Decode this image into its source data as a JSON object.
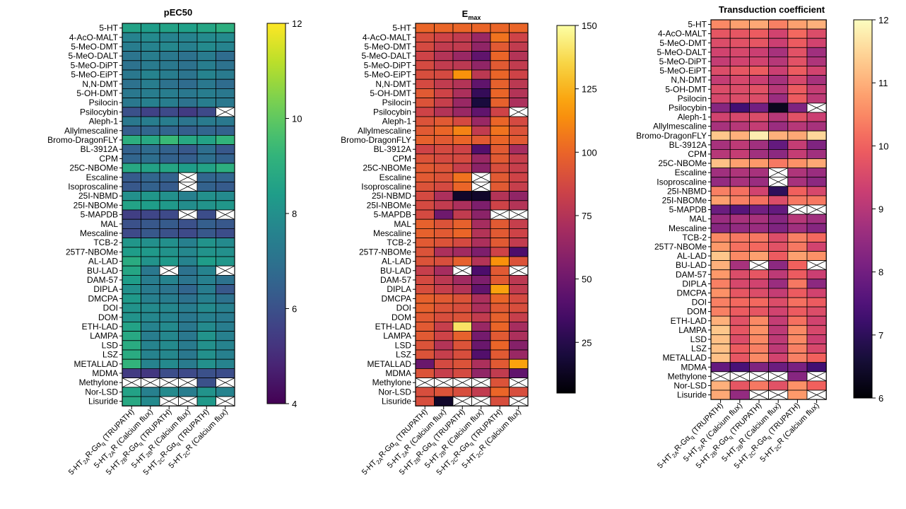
{
  "chart_data": [
    {
      "type": "heatmap",
      "title": "pEC50",
      "colormap": "viridis",
      "vmin": 4,
      "vmax": 12,
      "colorbar_ticks": [
        4,
        6,
        8,
        10,
        12
      ],
      "rows": [
        "5-HT",
        "4-AcO-MALT",
        "5-MeO-DMT",
        "5-MeO-DALT",
        "5-MeO-DiPT",
        "5-MeO-EiPT",
        "N,N-DMT",
        "5-OH-DMT",
        "Psilocin",
        "Psilocybin",
        "Aleph-1",
        "Allylmescaline",
        "Bromo-DragonFLY",
        "BL-3912A",
        "CPM",
        "25C-NBOMe",
        "Escaline",
        "Isoproscaline",
        "25I-NBMD",
        "25I-NBOMe",
        "5-MAPDB",
        "MAL",
        "Mescaline",
        "TCB-2",
        "25T7-NBOMe",
        "AL-LAD",
        "BU-LAD",
        "DAM-57",
        "DIPLA",
        "DMCPA",
        "DOI",
        "DOM",
        "ETH-LAD",
        "LAMPA",
        "LSD",
        "LSZ",
        "METALLAD",
        "MDMA",
        "Methylone",
        "Nor-LSD",
        "Lisuride"
      ],
      "columns": [
        {
          "pre": "5-HT",
          "sub": "2A",
          "post": "R-Gα",
          "sub2": "q",
          "post2": " (TRUPATH)"
        },
        {
          "pre": "5-HT",
          "sub": "2A",
          "post": "R (Calcium flux)",
          "sub2": "",
          "post2": ""
        },
        {
          "pre": "5-HT",
          "sub": "2B",
          "post": "R-Gα",
          "sub2": "q",
          "post2": " (TRUPATH)"
        },
        {
          "pre": "5-HT",
          "sub": "2B",
          "post": "R (Calcium flux)",
          "sub2": "",
          "post2": ""
        },
        {
          "pre": "5-HT",
          "sub": "2C",
          "post": "R-Gα",
          "sub2": "q",
          "post2": " (TRUPATH)"
        },
        {
          "pre": "5-HT",
          "sub": "2C",
          "post": "R (Calcium flux)",
          "sub2": "",
          "post2": ""
        }
      ],
      "values": [
        [
          8.6,
          8.4,
          8.6,
          8.5,
          8.7,
          9.0
        ],
        [
          7.6,
          7.8,
          7.6,
          7.6,
          7.8,
          7.8
        ],
        [
          7.4,
          7.6,
          7.7,
          7.5,
          7.8,
          7.6
        ],
        [
          7.1,
          7.4,
          7.2,
          7.0,
          7.3,
          6.8
        ],
        [
          7.0,
          7.3,
          7.2,
          7.0,
          7.4,
          7.0
        ],
        [
          7.2,
          7.6,
          7.4,
          7.1,
          7.6,
          7.3
        ],
        [
          7.0,
          7.4,
          7.0,
          6.8,
          7.2,
          6.8
        ],
        [
          7.2,
          7.4,
          7.4,
          7.2,
          7.4,
          7.2
        ],
        [
          7.2,
          7.5,
          7.4,
          7.0,
          7.4,
          7.2
        ],
        [
          6.0,
          5.6,
          5.8,
          5.4,
          5.8,
          null
        ],
        [
          7.2,
          7.4,
          7.4,
          7.1,
          7.3,
          7.2
        ],
        [
          6.4,
          6.6,
          6.6,
          6.4,
          6.6,
          6.5
        ],
        [
          9.0,
          8.8,
          9.4,
          8.8,
          8.6,
          9.2
        ],
        [
          6.5,
          6.8,
          6.5,
          6.2,
          6.9,
          6.2
        ],
        [
          6.6,
          6.9,
          6.5,
          6.4,
          6.9,
          6.5
        ],
        [
          8.8,
          8.6,
          8.7,
          8.4,
          8.6,
          9.0
        ],
        [
          6.3,
          6.6,
          6.5,
          null,
          6.6,
          6.6
        ],
        [
          6.2,
          6.5,
          6.3,
          null,
          6.5,
          6.3
        ],
        [
          8.0,
          8.2,
          8.0,
          7.5,
          8.0,
          7.8
        ],
        [
          8.6,
          8.4,
          8.3,
          7.9,
          8.1,
          8.2
        ],
        [
          5.5,
          5.7,
          5.8,
          null,
          5.9,
          null
        ],
        [
          6.0,
          6.2,
          6.3,
          6.0,
          6.4,
          6.2
        ],
        [
          5.8,
          6.2,
          6.0,
          5.8,
          6.2,
          5.9
        ],
        [
          8.2,
          8.0,
          8.0,
          7.5,
          8.1,
          7.8
        ],
        [
          8.4,
          8.3,
          8.1,
          7.7,
          8.1,
          8.0
        ],
        [
          8.9,
          8.1,
          8.3,
          7.6,
          8.4,
          8.2
        ],
        [
          8.7,
          7.2,
          null,
          7.0,
          7.6,
          null
        ],
        [
          8.4,
          7.4,
          7.6,
          7.1,
          7.5,
          7.0
        ],
        [
          8.0,
          7.3,
          7.1,
          6.6,
          7.4,
          6.2
        ],
        [
          8.3,
          7.5,
          7.4,
          7.0,
          7.5,
          7.0
        ],
        [
          8.1,
          7.8,
          7.7,
          7.4,
          7.8,
          7.5
        ],
        [
          8.1,
          7.7,
          7.6,
          7.2,
          7.5,
          7.3
        ],
        [
          8.6,
          7.6,
          7.8,
          7.2,
          7.8,
          7.4
        ],
        [
          8.8,
          7.4,
          7.7,
          7.2,
          8.1,
          7.5
        ],
        [
          8.9,
          7.6,
          7.8,
          7.3,
          8.0,
          7.6
        ],
        [
          8.9,
          7.6,
          7.7,
          7.2,
          8.0,
          7.5
        ],
        [
          9.2,
          7.6,
          7.8,
          7.3,
          8.0,
          7.6
        ],
        [
          5.4,
          5.3,
          5.9,
          5.8,
          6.0,
          5.9
        ],
        [
          null,
          null,
          null,
          null,
          6.0,
          null
        ],
        [
          8.6,
          7.5,
          7.8,
          7.4,
          8.1,
          7.6
        ],
        [
          8.8,
          7.8,
          null,
          null,
          8.3,
          null
        ]
      ]
    },
    {
      "type": "heatmap",
      "title": {
        "main": "E",
        "sub": "max"
      },
      "colormap": "inferno",
      "vmin": 5,
      "vmax": 150,
      "colorbar_ticks": [
        25,
        50,
        75,
        100,
        125,
        150
      ],
      "rows": [
        "5-HT",
        "4-AcO-MALT",
        "5-MeO-DMT",
        "5-MeO-DALT",
        "5-MeO-DiPT",
        "5-MeO-EiPT",
        "N,N-DMT",
        "5-OH-DMT",
        "Psilocin",
        "Psilocybin",
        "Aleph-1",
        "Allylmescaline",
        "Bromo-DragonFLY",
        "BL-3912A",
        "CPM",
        "25C-NBOMe",
        "Escaline",
        "Isoproscaline",
        "25I-NBMD",
        "25I-NBOMe",
        "5-MAPDB",
        "MAL",
        "Mescaline",
        "TCB-2",
        "25T7-NBOMe",
        "AL-LAD",
        "BU-LAD",
        "DAM-57",
        "DIPLA",
        "DMCPA",
        "DOI",
        "DOM",
        "ETH-LAD",
        "LAMPA",
        "LSD",
        "LSZ",
        "METALLAD",
        "MDMA",
        "Methylone",
        "Nor-LSD",
        "Lisuride"
      ],
      "columns": [
        {
          "pre": "5-HT",
          "sub": "2A",
          "post": "R-Gα",
          "sub2": "q",
          "post2": " (TRUPATH)"
        },
        {
          "pre": "5-HT",
          "sub": "2A",
          "post": "R (Calcium flux)",
          "sub2": "",
          "post2": ""
        },
        {
          "pre": "5-HT",
          "sub": "2B",
          "post": "R-Gα",
          "sub2": "q",
          "post2": " (TRUPATH)"
        },
        {
          "pre": "5-HT",
          "sub": "2B",
          "post": "R (Calcium flux)",
          "sub2": "",
          "post2": ""
        },
        {
          "pre": "5-HT",
          "sub": "2C",
          "post": "R-Gα",
          "sub2": "q",
          "post2": " (TRUPATH)"
        },
        {
          "pre": "5-HT",
          "sub": "2C",
          "post": "R (Calcium flux)",
          "sub2": "",
          "post2": ""
        }
      ],
      "values": [
        [
          100,
          100,
          100,
          100,
          100,
          100
        ],
        [
          90,
          85,
          80,
          65,
          105,
          85
        ],
        [
          88,
          80,
          80,
          62,
          95,
          80
        ],
        [
          85,
          75,
          65,
          45,
          100,
          75
        ],
        [
          88,
          80,
          78,
          62,
          95,
          80
        ],
        [
          90,
          88,
          115,
          78,
          100,
          85
        ],
        [
          88,
          80,
          75,
          45,
          98,
          78
        ],
        [
          95,
          85,
          72,
          30,
          100,
          75
        ],
        [
          92,
          82,
          65,
          20,
          98,
          72
        ],
        [
          85,
          75,
          65,
          45,
          85,
          null
        ],
        [
          92,
          95,
          88,
          65,
          100,
          88
        ],
        [
          95,
          100,
          110,
          80,
          105,
          92
        ],
        [
          98,
          95,
          100,
          95,
          100,
          95
        ],
        [
          85,
          88,
          85,
          40,
          95,
          70
        ],
        [
          92,
          88,
          88,
          65,
          95,
          82
        ],
        [
          95,
          92,
          82,
          60,
          90,
          82
        ],
        [
          95,
          92,
          105,
          null,
          95,
          85
        ],
        [
          92,
          88,
          100,
          null,
          95,
          82
        ],
        [
          88,
          72,
          15,
          15,
          75,
          62
        ],
        [
          88,
          80,
          72,
          55,
          85,
          75
        ],
        [
          88,
          50,
          80,
          60,
          null,
          null
        ],
        [
          98,
          92,
          98,
          70,
          95,
          82
        ],
        [
          98,
          95,
          100,
          75,
          95,
          85
        ],
        [
          95,
          92,
          88,
          72,
          95,
          80
        ],
        [
          92,
          72,
          68,
          55,
          85,
          38
        ],
        [
          92,
          90,
          98,
          75,
          115,
          92
        ],
        [
          82,
          70,
          null,
          38,
          95,
          null
        ],
        [
          88,
          78,
          68,
          55,
          95,
          78
        ],
        [
          90,
          82,
          75,
          45,
          120,
          80
        ],
        [
          98,
          95,
          92,
          72,
          100,
          88
        ],
        [
          98,
          92,
          90,
          72,
          95,
          90
        ],
        [
          95,
          90,
          92,
          80,
          98,
          82
        ],
        [
          95,
          82,
          140,
          65,
          100,
          70
        ],
        [
          95,
          85,
          98,
          52,
          95,
          72
        ],
        [
          92,
          75,
          92,
          48,
          100,
          58
        ],
        [
          92,
          82,
          90,
          40,
          95,
          65
        ],
        [
          48,
          88,
          92,
          72,
          95,
          120
        ],
        [
          92,
          82,
          88,
          62,
          80,
          45
        ],
        [
          null,
          null,
          null,
          null,
          92,
          null
        ],
        [
          90,
          92,
          90,
          80,
          100,
          90
        ],
        [
          90,
          15,
          null,
          null,
          90,
          null
        ]
      ]
    },
    {
      "type": "heatmap",
      "title": "Transduction coefficient",
      "colormap": "magma",
      "vmin": 6,
      "vmax": 12,
      "colorbar_ticks": [
        6,
        7,
        8,
        9,
        10,
        11,
        12
      ],
      "rows": [
        "5-HT",
        "4-AcO-MALT",
        "5-MeO-DMT",
        "5-MeO-DALT",
        "5-MeO-DiPT",
        "5-MeO-EiPT",
        "N,N-DMT",
        "5-OH-DMT",
        "Psilocin",
        "Psilocybin",
        "Aleph-1",
        "Allylmescaline",
        "Bromo-DragonFLY",
        "BL-3912A",
        "CPM",
        "25C-NBOMe",
        "Escaline",
        "Isoproscaline",
        "25I-NBMD",
        "25I-NBOMe",
        "5-MAPDB",
        "MAL",
        "Mescaline",
        "TCB-2",
        "25T7-NBOMe",
        "AL-LAD",
        "BU-LAD",
        "DAM-57",
        "DIPLA",
        "DMCPA",
        "DOI",
        "DOM",
        "ETH-LAD",
        "LAMPA",
        "LSD",
        "LSZ",
        "METALLAD",
        "MDMA",
        "Methylone",
        "Nor-LSD",
        "Lisuride"
      ],
      "columns": [
        {
          "pre": "5-HT",
          "sub": "2A",
          "post": "R-Gα",
          "sub2": "q",
          "post2": " (TRUPATH)"
        },
        {
          "pre": "5-HT",
          "sub": "2A",
          "post": "R (Calcium flux)",
          "sub2": "",
          "post2": ""
        },
        {
          "pre": "5-HT",
          "sub": "2B",
          "post": "R-Gα",
          "sub2": "q",
          "post2": " (TRUPATH)"
        },
        {
          "pre": "5-HT",
          "sub": "2B",
          "post": "R (Calcium flux)",
          "sub2": "",
          "post2": ""
        },
        {
          "pre": "5-HT",
          "sub": "2C",
          "post": "R-Gα",
          "sub2": "q",
          "post2": " (TRUPATH)"
        },
        {
          "pre": "5-HT",
          "sub": "2C",
          "post": "R (Calcium flux)",
          "sub2": "",
          "post2": ""
        }
      ],
      "values": [
        [
          10.5,
          10.8,
          10.9,
          10.4,
          10.8,
          11.0
        ],
        [
          9.8,
          9.8,
          9.9,
          9.4,
          10.1,
          9.6
        ],
        [
          9.6,
          9.7,
          9.8,
          9.3,
          9.9,
          9.4
        ],
        [
          9.4,
          9.5,
          9.3,
          8.8,
          9.7,
          8.7
        ],
        [
          9.2,
          9.4,
          9.4,
          9.0,
          9.7,
          8.9
        ],
        [
          9.6,
          9.8,
          9.9,
          9.3,
          9.9,
          9.4
        ],
        [
          9.2,
          9.5,
          9.3,
          8.8,
          9.5,
          8.8
        ],
        [
          9.6,
          9.6,
          9.7,
          9.0,
          9.9,
          9.2
        ],
        [
          9.5,
          9.6,
          9.6,
          8.6,
          9.9,
          9.1
        ],
        [
          8.3,
          7.3,
          8.0,
          6.3,
          8.2,
          null
        ],
        [
          9.4,
          9.5,
          9.6,
          9.0,
          9.7,
          9.3
        ],
        [
          8.8,
          9.0,
          9.2,
          8.6,
          9.0,
          8.8
        ],
        [
          11.3,
          11.0,
          11.8,
          11.0,
          10.9,
          11.5
        ],
        [
          8.8,
          9.1,
          8.7,
          7.8,
          9.2,
          8.2
        ],
        [
          9.0,
          9.2,
          8.7,
          8.4,
          9.2,
          8.7
        ],
        [
          11.2,
          10.8,
          10.7,
          10.3,
          10.6,
          10.9
        ],
        [
          8.7,
          8.9,
          8.8,
          null,
          8.9,
          8.6
        ],
        [
          8.5,
          8.8,
          8.6,
          null,
          8.8,
          8.4
        ],
        [
          10.4,
          10.2,
          9.4,
          7.0,
          10.0,
          9.5
        ],
        [
          10.8,
          10.4,
          10.2,
          9.6,
          10.3,
          10.3
        ],
        [
          7.9,
          7.6,
          8.0,
          7.8,
          null,
          null
        ],
        [
          8.6,
          8.8,
          8.8,
          8.3,
          9.0,
          8.7
        ],
        [
          8.3,
          8.5,
          8.6,
          8.2,
          8.7,
          8.3
        ],
        [
          10.5,
          10.3,
          10.3,
          9.6,
          10.4,
          10.1
        ],
        [
          10.7,
          10.2,
          10.1,
          9.7,
          10.3,
          9.4
        ],
        [
          11.3,
          10.5,
          10.8,
          9.9,
          10.8,
          10.6
        ],
        [
          11.0,
          8.8,
          null,
          8.4,
          10.0,
          null
        ],
        [
          10.7,
          9.6,
          9.8,
          9.1,
          9.9,
          9.3
        ],
        [
          10.4,
          9.5,
          9.4,
          8.6,
          10.3,
          8.4
        ],
        [
          10.6,
          9.8,
          9.6,
          9.2,
          9.9,
          9.4
        ],
        [
          10.4,
          10.1,
          10.1,
          9.6,
          10.2,
          9.9
        ],
        [
          10.4,
          9.9,
          9.8,
          9.4,
          9.9,
          9.6
        ],
        [
          11.0,
          9.7,
          10.5,
          9.2,
          10.2,
          9.4
        ],
        [
          11.3,
          9.8,
          10.6,
          9.1,
          10.5,
          9.5
        ],
        [
          11.2,
          9.6,
          10.5,
          9.1,
          10.5,
          9.3
        ],
        [
          11.2,
          9.9,
          10.4,
          9.1,
          10.4,
          9.5
        ],
        [
          11.2,
          9.8,
          10.5,
          9.4,
          10.4,
          10.0
        ],
        [
          7.8,
          7.4,
          8.2,
          7.9,
          8.1,
          7.3
        ],
        [
          null,
          null,
          null,
          null,
          8.3,
          null
        ],
        [
          11.0,
          9.8,
          10.3,
          9.7,
          10.6,
          10.0
        ],
        [
          10.9,
          8.5,
          null,
          null,
          10.7,
          null
        ]
      ]
    }
  ]
}
